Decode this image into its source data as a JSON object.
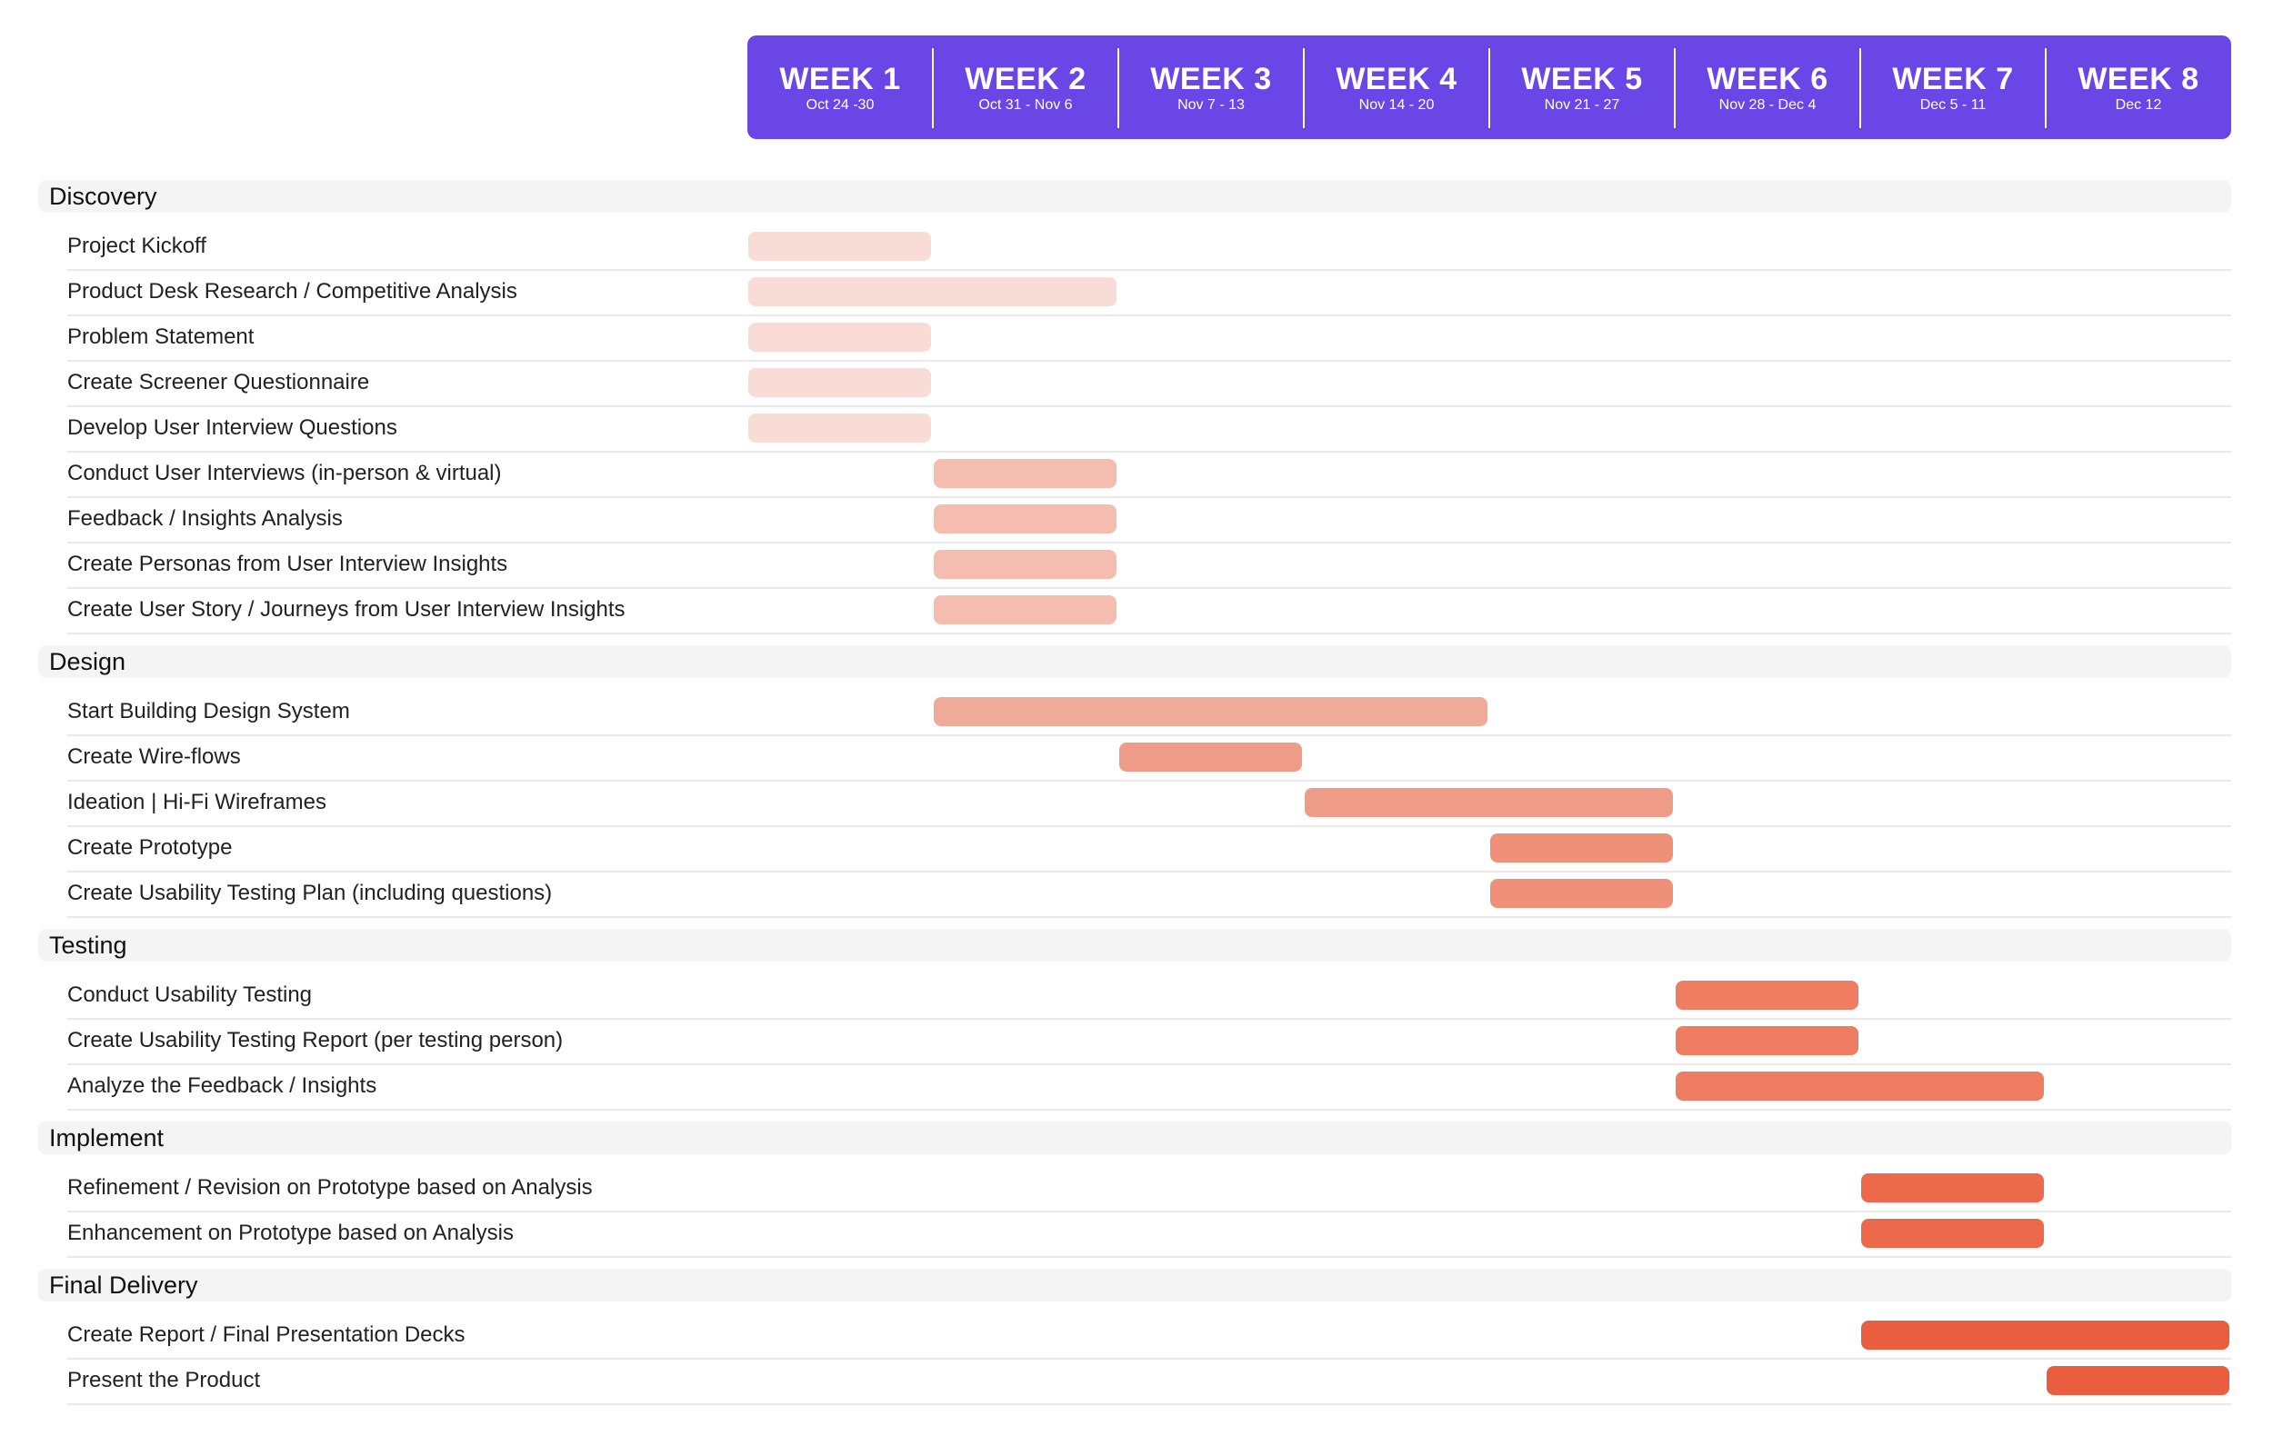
{
  "chart_data": {
    "type": "gantt",
    "weeks": [
      {
        "label": "WEEK 1",
        "range": "Oct 24 -30"
      },
      {
        "label": "WEEK 2",
        "range": "Oct 31 - Nov 6"
      },
      {
        "label": "WEEK 3",
        "range": "Nov 7 - 13"
      },
      {
        "label": "WEEK 4",
        "range": "Nov 14 - 20"
      },
      {
        "label": "WEEK 5",
        "range": "Nov 21 - 27"
      },
      {
        "label": "WEEK 6",
        "range": "Nov 28 - Dec 4"
      },
      {
        "label": "WEEK 7",
        "range": "Dec 5 - 11"
      },
      {
        "label": "WEEK 8",
        "range": "Dec 12"
      }
    ],
    "sections": [
      {
        "name": "Discovery",
        "tasks": [
          {
            "name": "Project Kickoff",
            "start": 1,
            "end": 1,
            "color": "#f9dcd6"
          },
          {
            "name": "Product Desk Research / Competitive Analysis",
            "start": 1,
            "end": 2,
            "color": "#f9dcd6"
          },
          {
            "name": "Problem Statement",
            "start": 1,
            "end": 1,
            "color": "#f9dcd6"
          },
          {
            "name": "Create Screener Questionnaire",
            "start": 1,
            "end": 1,
            "color": "#f9dcd6"
          },
          {
            "name": "Develop User Interview Questions",
            "start": 1,
            "end": 1,
            "color": "#f9dcd6"
          },
          {
            "name": "Conduct User Interviews (in-person & virtual)",
            "start": 2,
            "end": 2,
            "color": "#f4bdb0"
          },
          {
            "name": "Feedback / Insights Analysis",
            "start": 2,
            "end": 2,
            "color": "#f4bdb0"
          },
          {
            "name": "Create Personas from User Interview Insights",
            "start": 2,
            "end": 2,
            "color": "#f4bdb0"
          },
          {
            "name": "Create User Story / Journeys from User Interview Insights",
            "start": 2,
            "end": 2,
            "color": "#f4bdb0"
          }
        ]
      },
      {
        "name": "Design",
        "tasks": [
          {
            "name": "Start Building Design System",
            "start": 2,
            "end": 4,
            "color": "#f0aa98"
          },
          {
            "name": "Create Wire-flows",
            "start": 3,
            "end": 3,
            "color": "#ee9c87"
          },
          {
            "name": "Ideation | Hi-Fi Wireframes",
            "start": 4,
            "end": 5,
            "color": "#ee9c87"
          },
          {
            "name": "Create Prototype",
            "start": 5,
            "end": 5,
            "color": "#ef9078"
          },
          {
            "name": "Create Usability Testing Plan (including questions)",
            "start": 5,
            "end": 5,
            "color": "#ef9078"
          }
        ]
      },
      {
        "name": "Testing",
        "tasks": [
          {
            "name": "Conduct Usability Testing",
            "start": 6,
            "end": 6,
            "color": "#ee7d62"
          },
          {
            "name": "Create Usability Testing Report (per testing person)",
            "start": 6,
            "end": 6,
            "color": "#ee7d62"
          },
          {
            "name": "Analyze the Feedback / Insights",
            "start": 6,
            "end": 7,
            "color": "#ee7d62"
          }
        ]
      },
      {
        "name": "Implement",
        "tasks": [
          {
            "name": "Refinement / Revision on Prototype based on Analysis",
            "start": 7,
            "end": 7,
            "color": "#ec6a4b"
          },
          {
            "name": "Enhancement on Prototype based on Analysis",
            "start": 7,
            "end": 7,
            "color": "#ec6a4b"
          }
        ]
      },
      {
        "name": "Final Delivery",
        "tasks": [
          {
            "name": "Create Report / Final Presentation Decks",
            "start": 7,
            "end": 8,
            "color": "#ea5e3f"
          },
          {
            "name": "Present the Product",
            "start": 8,
            "end": 8,
            "color": "#ea5e3f"
          }
        ]
      }
    ],
    "colors": {
      "header": "#6b46e6",
      "section_band": "#f4f4f4",
      "row_separator": "#e9e9e9"
    }
  }
}
